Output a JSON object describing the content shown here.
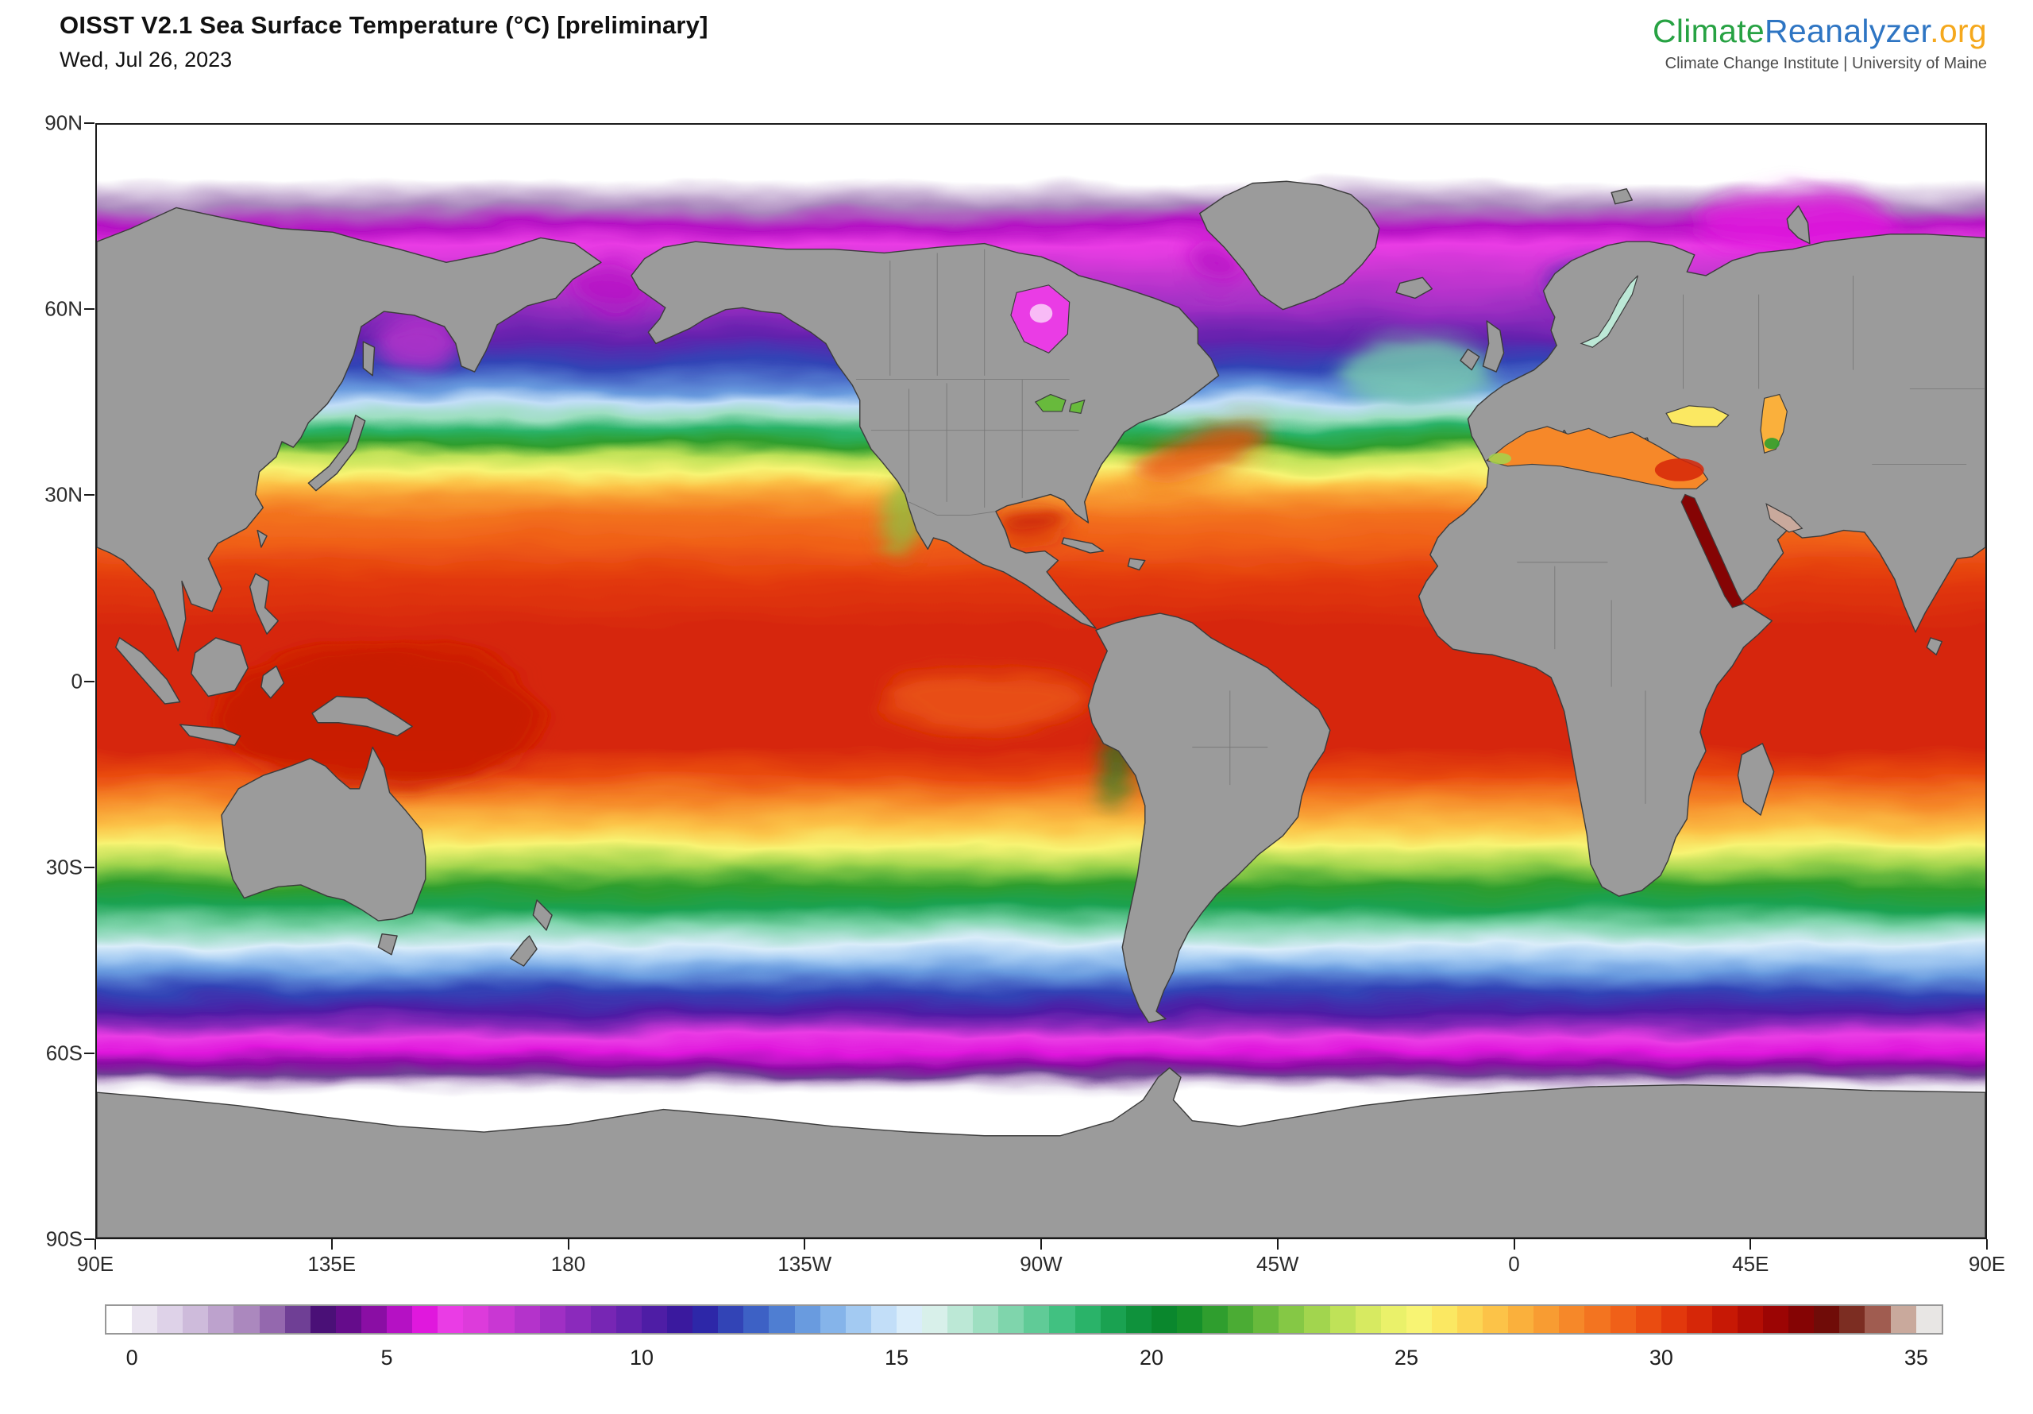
{
  "header": {
    "title": "OISST V2.1 Sea Surface Temperature (°C) [preliminary]",
    "date": "Wed, Jul 26, 2023"
  },
  "brand": {
    "parts": [
      {
        "text": "Climate",
        "color": "#27a243"
      },
      {
        "text": "Reanalyzer",
        "color": "#2e75c3"
      },
      {
        "text": ".org",
        "color": "#f5a81c"
      }
    ],
    "tagline": "Climate Change Institute | University of Maine"
  },
  "map": {
    "land_color": "#9b9b9b",
    "coast_color": "#3c3c3c",
    "state_line_color": "#5f5f5f",
    "ice_color": "#ffffff",
    "frame_color": "#1a1a1a"
  },
  "axes": {
    "lat_labels": [
      "90N",
      "60N",
      "30N",
      "0",
      "30S",
      "60S",
      "90S"
    ],
    "lon_labels": [
      "90E",
      "135E",
      "180",
      "135W",
      "90W",
      "45W",
      "0",
      "45E",
      "90E"
    ]
  },
  "chart_data": {
    "type": "heatmap",
    "title": "OISST V2.1 Sea Surface Temperature (°C) [preliminary]",
    "date": "Wed, Jul 26, 2023",
    "units": "°C",
    "projection": "equirectangular, longitudes 90E eastward around to 90E, latitudes 90N to 90S",
    "colorbar": {
      "min": -0.5,
      "step": 0.5,
      "tick_labels": [
        "0",
        "5",
        "10",
        "15",
        "20",
        "25",
        "30",
        "35"
      ],
      "colors": [
        "#ffffff",
        "#eae4f0",
        "#ded2e8",
        "#cebbdb",
        "#bda2cd",
        "#ab88be",
        "#9468ae",
        "#6f3f95",
        "#4a1077",
        "#650c8b",
        "#8a0ea4",
        "#b511c4",
        "#e018dd",
        "#ea3ce5",
        "#dd3bdb",
        "#c937d3",
        "#b433cb",
        "#a02fc4",
        "#8b2abc",
        "#7726b4",
        "#6322ad",
        "#4e1da5",
        "#3a199e",
        "#2d27a8",
        "#3244b6",
        "#3d61c5",
        "#4f7ed2",
        "#699bdf",
        "#85b4ea",
        "#a3caf2",
        "#c2def8",
        "#daedfa",
        "#d8f0ea",
        "#bce8d6",
        "#9edfc1",
        "#7fd5ac",
        "#60cb97",
        "#41c181",
        "#2ab369",
        "#1aa251",
        "#0f923c",
        "#0a872d",
        "#15902a",
        "#2f9e2e",
        "#4bac34",
        "#68ba3c",
        "#85c845",
        "#a2d54e",
        "#bfe258",
        "#d7ea61",
        "#eaf16a",
        "#f8f473",
        "#fbe862",
        "#fcd654",
        "#fcc348",
        "#fab03c",
        "#f89c32",
        "#f68829",
        "#f37420",
        "#f06018",
        "#ea4c11",
        "#e2380c",
        "#d62708",
        "#c71805",
        "#b30d04",
        "#9c0504",
        "#850404",
        "#700c08",
        "#7c2d22",
        "#a05c50",
        "#c9a99c",
        "#e8e6e4"
      ]
    },
    "latitude_sst_profile": [
      {
        "lat": 90,
        "sst": -2
      },
      {
        "lat": 76,
        "sst": -2
      },
      {
        "lat": 72,
        "sst": 2
      },
      {
        "lat": 69,
        "sst": 5
      },
      {
        "lat": 66,
        "sst": 6.2
      },
      {
        "lat": 62,
        "sst": 7
      },
      {
        "lat": 57,
        "sst": 8.2
      },
      {
        "lat": 52,
        "sst": 9.8
      },
      {
        "lat": 48,
        "sst": 11.6
      },
      {
        "lat": 44,
        "sst": 13.2
      },
      {
        "lat": 42,
        "sst": 14.6
      },
      {
        "lat": 40,
        "sst": 16.5
      },
      {
        "lat": 38,
        "sst": 18.8
      },
      {
        "lat": 36,
        "sst": 21.2
      },
      {
        "lat": 34,
        "sst": 23.6
      },
      {
        "lat": 32,
        "sst": 25.2
      },
      {
        "lat": 30,
        "sst": 26.6
      },
      {
        "lat": 28,
        "sst": 27.6
      },
      {
        "lat": 25,
        "sst": 28.6
      },
      {
        "lat": 21,
        "sst": 29.4
      },
      {
        "lat": 15,
        "sst": 30.1
      },
      {
        "lat": 8,
        "sst": 30.7
      },
      {
        "lat": 0,
        "sst": 30.8
      },
      {
        "lat": -5,
        "sst": 30.9
      },
      {
        "lat": -10,
        "sst": 30.5
      },
      {
        "lat": -14,
        "sst": 29.8
      },
      {
        "lat": -18,
        "sst": 28.4
      },
      {
        "lat": -22,
        "sst": 26.8
      },
      {
        "lat": -25,
        "sst": 25.3
      },
      {
        "lat": -28,
        "sst": 23.4
      },
      {
        "lat": -31,
        "sst": 21.4
      },
      {
        "lat": -34,
        "sst": 19.2
      },
      {
        "lat": -37,
        "sst": 17.2
      },
      {
        "lat": -40,
        "sst": 15.2
      },
      {
        "lat": -42,
        "sst": 14.2
      },
      {
        "lat": -44,
        "sst": 13.2
      },
      {
        "lat": -47,
        "sst": 11.6
      },
      {
        "lat": -50,
        "sst": 10.2
      },
      {
        "lat": -52,
        "sst": 8.8
      },
      {
        "lat": -54,
        "sst": 6.4
      },
      {
        "lat": -56,
        "sst": 5.8
      },
      {
        "lat": -58,
        "sst": 4.7
      },
      {
        "lat": -59.5,
        "sst": 3.2
      },
      {
        "lat": -60.5,
        "sst": 1.7
      },
      {
        "lat": -61.5,
        "sst": 0.4
      },
      {
        "lat": -62.5,
        "sst": -2
      },
      {
        "lat": -90,
        "sst": -2
      }
    ],
    "features_sst": {
      "mediterranean-sea": 28,
      "east-mediterranean": 30.5,
      "alboran-sea": 23,
      "black-sea": 25.5,
      "caspian-sea": 27,
      "caspian-south": 21,
      "red-sea": 32.5,
      "persian-gulf": 34.5,
      "baltic-sea": 16,
      "hudson-bay": 6,
      "great-lakes": 22,
      "sea-of-okhotsk": 7.5,
      "bering-sea": 5,
      "barents-sea": 5.5,
      "kara-sea": 6.5,
      "baffin-bay": 5,
      "norwegian-sea": 11,
      "ne-atlantic": 17,
      "gulf-stream": 29.5,
      "gulf-of-mexico": 31,
      "west-pacific-warm-pool": 31,
      "eq-east-pacific": 29,
      "california-current": 22.5,
      "peru-current": 20
    }
  }
}
